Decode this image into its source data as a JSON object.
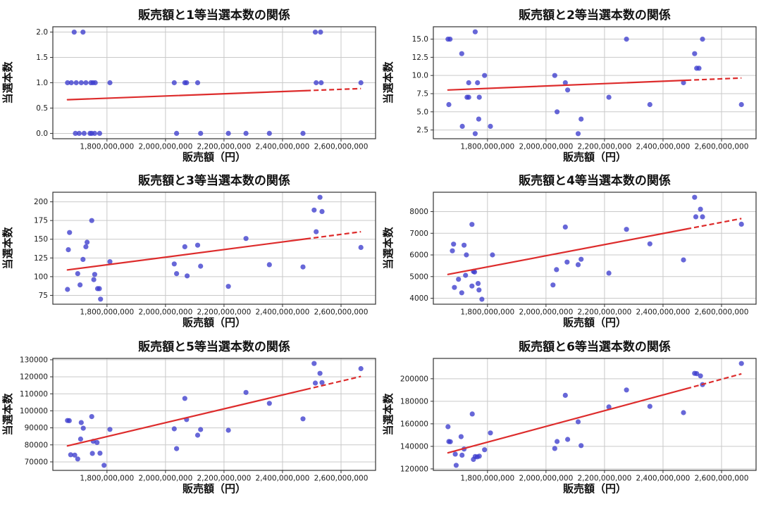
{
  "figure": {
    "background": "#ffffff",
    "rows": 3,
    "cols": 2,
    "grid": true,
    "legend": "none"
  },
  "style": {
    "point_color": "#3c3ccd",
    "point_opacity": 0.78,
    "trend_color": "#dd2c2c",
    "grid_color": "#c9c9c9",
    "spine_color": "#333333",
    "tick_color": "#333333",
    "text_color": "#111111"
  },
  "axis": {
    "xlabel": "販売額（円）",
    "ylabel": "当選本数",
    "xlim": [
      1615000000,
      2718000000
    ],
    "x_tick_values": [
      1800000000,
      2000000000,
      2200000000,
      2400000000,
      2600000000
    ],
    "x_tick_labels": [
      "1,800,000,000",
      "2,000,000,000",
      "2,200,000,000",
      "2,400,000,000",
      "2,600,000,000"
    ],
    "trend_dash_start_x": 2480000000
  },
  "chart_data": [
    {
      "type": "scatter",
      "tier": "1等",
      "title": "販売額と1等当選本数の関係",
      "xlabel": "販売額（円）",
      "ylabel": "当選本数",
      "ylim": [
        -0.105,
        2.105
      ],
      "y_tick_values": [
        0.0,
        0.5,
        1.0,
        1.5,
        2.0
      ],
      "y_tick_labels": [
        "0.0",
        "0.5",
        "1.0",
        "1.5",
        "2.0"
      ],
      "trend": {
        "x1": 1665000000,
        "y1": 0.665,
        "x2": 2668000000,
        "y2": 0.885
      },
      "points": [
        [
          1688000000,
          2
        ],
        [
          1718000000,
          2
        ],
        [
          2512000000,
          2
        ],
        [
          2530000000,
          2
        ],
        [
          1665000000,
          1
        ],
        [
          1678000000,
          1
        ],
        [
          1695000000,
          1
        ],
        [
          1712000000,
          1
        ],
        [
          1728000000,
          1
        ],
        [
          1745000000,
          1
        ],
        [
          1752000000,
          1
        ],
        [
          1760000000,
          1
        ],
        [
          1810000000,
          1
        ],
        [
          2030000000,
          1
        ],
        [
          2066000000,
          1
        ],
        [
          2072000000,
          1
        ],
        [
          2110000000,
          1
        ],
        [
          2515000000,
          1
        ],
        [
          2532000000,
          1
        ],
        [
          2668000000,
          1
        ],
        [
          1692000000,
          0
        ],
        [
          1705000000,
          0
        ],
        [
          1722000000,
          0
        ],
        [
          1742000000,
          0
        ],
        [
          1748000000,
          0
        ],
        [
          1758000000,
          0
        ],
        [
          1775000000,
          0
        ],
        [
          2038000000,
          0
        ],
        [
          2120000000,
          0
        ],
        [
          2215000000,
          0
        ],
        [
          2275000000,
          0
        ],
        [
          2355000000,
          0
        ],
        [
          2470000000,
          0
        ]
      ]
    },
    {
      "type": "scatter",
      "tier": "2等",
      "title": "販売額と2等当選本数の関係",
      "xlabel": "販売額（円）",
      "ylabel": "当選本数",
      "ylim": [
        1.3,
        16.7
      ],
      "y_tick_values": [
        2.5,
        5.0,
        7.5,
        10.0,
        12.5,
        15.0
      ],
      "y_tick_labels": [
        "2.5",
        "5.0",
        "7.5",
        "10.0",
        "12.5",
        "15.0"
      ],
      "trend": {
        "x1": 1665000000,
        "y1": 8.0,
        "x2": 2668000000,
        "y2": 9.65
      },
      "points": [
        [
          1665000000,
          15
        ],
        [
          1672000000,
          15
        ],
        [
          1758000000,
          16
        ],
        [
          1712000000,
          13
        ],
        [
          1736000000,
          9
        ],
        [
          1766000000,
          9
        ],
        [
          1790000000,
          10
        ],
        [
          1730000000,
          7
        ],
        [
          1736000000,
          7
        ],
        [
          1772000000,
          7
        ],
        [
          1668000000,
          6
        ],
        [
          1714000000,
          3
        ],
        [
          1758000000,
          2
        ],
        [
          1770000000,
          4
        ],
        [
          1810000000,
          3
        ],
        [
          2030000000,
          10
        ],
        [
          2038000000,
          5
        ],
        [
          2066000000,
          9
        ],
        [
          2074000000,
          8
        ],
        [
          2110000000,
          2
        ],
        [
          2120000000,
          4
        ],
        [
          2215000000,
          7
        ],
        [
          2275000000,
          15
        ],
        [
          2355000000,
          6
        ],
        [
          2470000000,
          9
        ],
        [
          2508000000,
          13
        ],
        [
          2515000000,
          11
        ],
        [
          2523000000,
          11
        ],
        [
          2535000000,
          15
        ],
        [
          2668000000,
          6
        ]
      ]
    },
    {
      "type": "scatter",
      "tier": "3等",
      "title": "販売額と3等当選本数の関係",
      "xlabel": "販売額（円）",
      "ylabel": "当選本数",
      "ylim": [
        63.2,
        212.8
      ],
      "y_tick_values": [
        75,
        100,
        125,
        150,
        175,
        200
      ],
      "y_tick_labels": [
        "75",
        "100",
        "125",
        "150",
        "175",
        "200"
      ],
      "trend": {
        "x1": 1665000000,
        "y1": 109,
        "x2": 2668000000,
        "y2": 160
      },
      "points": [
        [
          1672000000,
          159
        ],
        [
          1668000000,
          136
        ],
        [
          1665000000,
          83
        ],
        [
          1700000000,
          104
        ],
        [
          1708000000,
          89
        ],
        [
          1718000000,
          123
        ],
        [
          1728000000,
          140
        ],
        [
          1732000000,
          146
        ],
        [
          1748000000,
          175
        ],
        [
          1755000000,
          96
        ],
        [
          1758000000,
          103
        ],
        [
          1768000000,
          84
        ],
        [
          1774000000,
          84
        ],
        [
          1778000000,
          70
        ],
        [
          1810000000,
          120
        ],
        [
          2030000000,
          117
        ],
        [
          2038000000,
          104
        ],
        [
          2066000000,
          140
        ],
        [
          2074000000,
          101
        ],
        [
          2110000000,
          142
        ],
        [
          2120000000,
          114
        ],
        [
          2215000000,
          87
        ],
        [
          2275000000,
          151
        ],
        [
          2355000000,
          116
        ],
        [
          2470000000,
          113
        ],
        [
          2508000000,
          189
        ],
        [
          2515000000,
          160
        ],
        [
          2528000000,
          206
        ],
        [
          2535000000,
          187
        ],
        [
          2668000000,
          139
        ]
      ]
    },
    {
      "type": "scatter",
      "tier": "4等",
      "title": "販売額と4等当選本数の関係",
      "xlabel": "販売額（円）",
      "ylabel": "当選本数",
      "ylim": [
        3725,
        8895
      ],
      "y_tick_values": [
        4000,
        5000,
        6000,
        7000,
        8000
      ],
      "y_tick_labels": [
        "4000",
        "5000",
        "6000",
        "7000",
        "8000"
      ],
      "trend": {
        "x1": 1665000000,
        "y1": 5100,
        "x2": 2668000000,
        "y2": 7680
      },
      "points": [
        [
          1684000000,
          6500
        ],
        [
          1680000000,
          6190
        ],
        [
          1687000000,
          4500
        ],
        [
          1701000000,
          4877
        ],
        [
          1712000000,
          4252
        ],
        [
          1720000000,
          6450
        ],
        [
          1728000000,
          6000
        ],
        [
          1725000000,
          5058
        ],
        [
          1747000000,
          7410
        ],
        [
          1752000000,
          5240
        ],
        [
          1756000000,
          5210
        ],
        [
          1747000000,
          4565
        ],
        [
          1768000000,
          4680
        ],
        [
          1771000000,
          4381
        ],
        [
          1781000000,
          3952
        ],
        [
          1817000000,
          6000
        ],
        [
          2036000000,
          5322
        ],
        [
          2024000000,
          4613
        ],
        [
          2066000000,
          7290
        ],
        [
          2072000000,
          5670
        ],
        [
          2110000000,
          5550
        ],
        [
          2120000000,
          5800
        ],
        [
          2215000000,
          5160
        ],
        [
          2275000000,
          7180
        ],
        [
          2355000000,
          6510
        ],
        [
          2470000000,
          5770
        ],
        [
          2508000000,
          8660
        ],
        [
          2512000000,
          7760
        ],
        [
          2528000000,
          8110
        ],
        [
          2535000000,
          7760
        ],
        [
          2668000000,
          7420
        ]
      ]
    },
    {
      "type": "scatter",
      "tier": "5等",
      "title": "販売額と5等当選本数の関係",
      "xlabel": "販売額（円）",
      "ylabel": "当選本数",
      "ylim": [
        65010,
        130790
      ],
      "y_tick_values": [
        70000,
        80000,
        90000,
        100000,
        110000,
        120000,
        130000
      ],
      "y_tick_labels": [
        "70000",
        "80000",
        "90000",
        "100000",
        "110000",
        "120000",
        "130000"
      ],
      "trend": {
        "x1": 1665000000,
        "y1": 79400,
        "x2": 2668000000,
        "y2": 120200
      },
      "points": [
        [
          1665000000,
          94300
        ],
        [
          1671000000,
          94200
        ],
        [
          1676000000,
          74200
        ],
        [
          1690000000,
          74000
        ],
        [
          1700000000,
          71700
        ],
        [
          1710000000,
          83400
        ],
        [
          1712000000,
          93100
        ],
        [
          1719000000,
          89800
        ],
        [
          1748000000,
          96600
        ],
        [
          1750000000,
          75000
        ],
        [
          1753000000,
          82100
        ],
        [
          1766000000,
          81400
        ],
        [
          1776000000,
          75100
        ],
        [
          1790000000,
          68000
        ],
        [
          1810000000,
          89100
        ],
        [
          2030000000,
          89400
        ],
        [
          2038000000,
          77800
        ],
        [
          2066000000,
          107300
        ],
        [
          2072000000,
          94900
        ],
        [
          2110000000,
          85700
        ],
        [
          2120000000,
          89000
        ],
        [
          2215000000,
          88600
        ],
        [
          2275000000,
          110800
        ],
        [
          2355000000,
          104400
        ],
        [
          2470000000,
          95300
        ],
        [
          2508000000,
          127800
        ],
        [
          2512000000,
          116300
        ],
        [
          2528000000,
          122000
        ],
        [
          2535000000,
          116600
        ],
        [
          2668000000,
          124800
        ]
      ]
    },
    {
      "type": "scatter",
      "tier": "6等",
      "title": "販売額と6等当選本数の関係",
      "xlabel": "販売額（円）",
      "ylabel": "当選本数",
      "ylim": [
        118685,
        218015
      ],
      "y_tick_values": [
        120000,
        140000,
        160000,
        180000,
        200000
      ],
      "y_tick_labels": [
        "120000",
        "140000",
        "160000",
        "180000",
        "200000"
      ],
      "trend": {
        "x1": 1665000000,
        "y1": 134300,
        "x2": 2668000000,
        "y2": 204300
      },
      "points": [
        [
          1665000000,
          157400
        ],
        [
          1668000000,
          144300
        ],
        [
          1673000000,
          144100
        ],
        [
          1690000000,
          133100
        ],
        [
          1693000000,
          123200
        ],
        [
          1710000000,
          148600
        ],
        [
          1713000000,
          132200
        ],
        [
          1720000000,
          137600
        ],
        [
          1748000000,
          168700
        ],
        [
          1752000000,
          128400
        ],
        [
          1758000000,
          131000
        ],
        [
          1765000000,
          130700
        ],
        [
          1772000000,
          131300
        ],
        [
          1790000000,
          137000
        ],
        [
          1810000000,
          151900
        ],
        [
          2030000000,
          138100
        ],
        [
          2038000000,
          144300
        ],
        [
          2066000000,
          185300
        ],
        [
          2074000000,
          146200
        ],
        [
          2110000000,
          161800
        ],
        [
          2120000000,
          140700
        ],
        [
          2215000000,
          175000
        ],
        [
          2275000000,
          190000
        ],
        [
          2355000000,
          175500
        ],
        [
          2470000000,
          169900
        ],
        [
          2508000000,
          204800
        ],
        [
          2515000000,
          204500
        ],
        [
          2528000000,
          202500
        ],
        [
          2535000000,
          194800
        ],
        [
          2668000000,
          213500
        ]
      ]
    }
  ]
}
